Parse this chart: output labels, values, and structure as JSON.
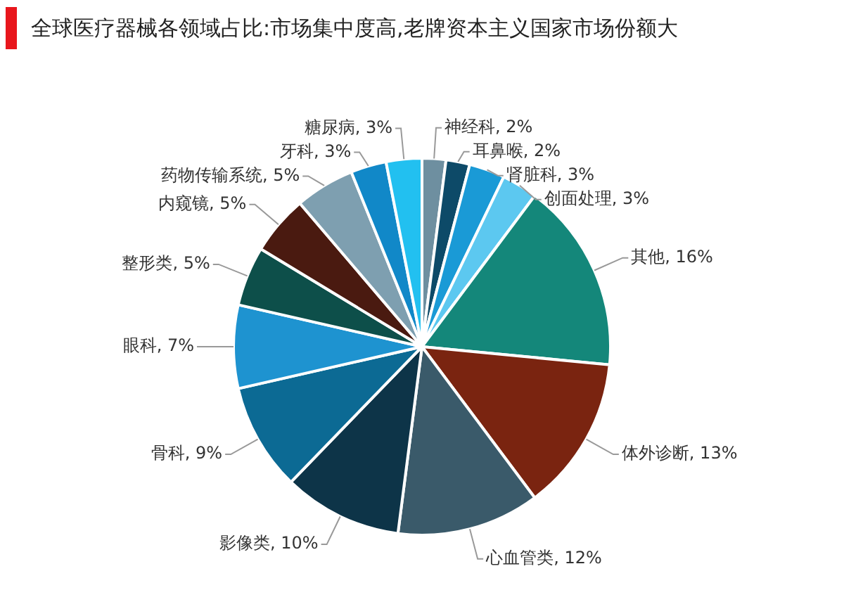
{
  "chart_data": {
    "type": "pie",
    "title": "全球医疗器械各领域占比:市场集中度高,老牌资本主义国家市场份额大",
    "categories": [
      "神经科",
      "耳鼻喉",
      "肾脏科",
      "创面处理",
      "其他",
      "体外诊断",
      "心血管类",
      "影像类",
      "骨科",
      "眼科",
      "整形类",
      "内窥镜",
      "药物传输系统",
      "牙科",
      "糖尿病"
    ],
    "values": [
      2,
      2,
      3,
      3,
      16,
      13,
      12,
      10,
      9,
      7,
      5,
      5,
      5,
      3,
      3
    ],
    "value_labels": [
      "2%",
      "2%",
      "3%",
      "3%",
      "16%",
      "13%",
      "12%",
      "10%",
      "9%",
      "7%",
      "5%",
      "5%",
      "5%",
      "3%",
      "3%"
    ],
    "colors": [
      "#6e8fa0",
      "#0d4a68",
      "#1a9ad6",
      "#5cc8f0",
      "#14877a",
      "#7a2410",
      "#3a5a6a",
      "#0d3448",
      "#0c6a94",
      "#1e93d0",
      "#0d4f4a",
      "#4a1a10",
      "#7e9fb0",
      "#1188c8",
      "#22c0f0"
    ],
    "legend": false
  }
}
